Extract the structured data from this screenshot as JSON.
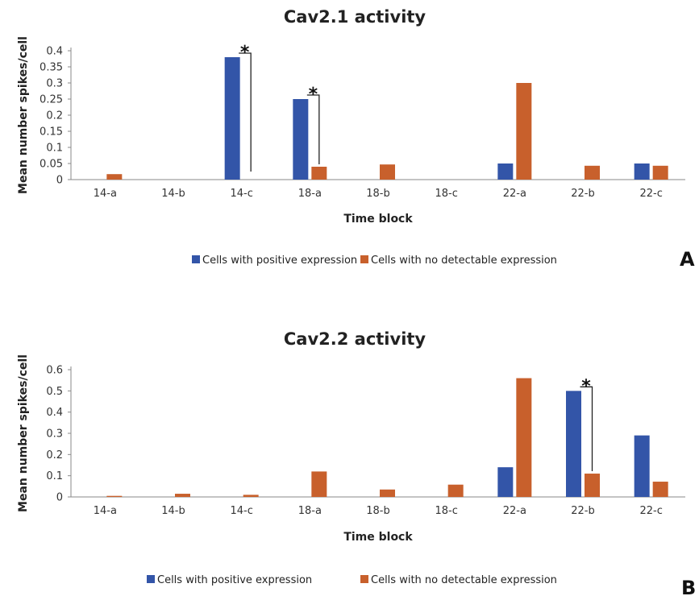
{
  "chart_data": [
    {
      "type": "bar",
      "panel_label": "A",
      "title": "Cav2.1 activity",
      "xlabel": "Time block",
      "ylabel": "Mean number spikes/cell",
      "ylim": [
        0,
        0.4
      ],
      "yticks": [
        "0",
        "0.05",
        "0.1",
        "0.15",
        "0.2",
        "0.25",
        "0.3",
        "0.35",
        "0.4"
      ],
      "categories": [
        "14-a",
        "14-b",
        "14-c",
        "18-a",
        "18-b",
        "18-c",
        "22-a",
        "22-b",
        "22-c"
      ],
      "series": [
        {
          "name": "Cells with positive expression",
          "color": "#3355a8",
          "values": [
            0,
            0,
            0.38,
            0.25,
            0,
            0,
            0.05,
            0,
            0.05
          ]
        },
        {
          "name": "Cells with no detectable expression",
          "color": "#c8602c",
          "values": [
            0.017,
            0,
            0,
            0.04,
            0.047,
            0,
            0.3,
            0.043,
            0.043
          ]
        }
      ],
      "significance": [
        {
          "category": "14-c",
          "label": "*"
        },
        {
          "category": "18-a",
          "label": "*"
        }
      ],
      "legend": "bottom"
    },
    {
      "type": "bar",
      "panel_label": "B",
      "title": "Cav2.2 activity",
      "xlabel": "Time block",
      "ylabel": "Mean number spikes/cell",
      "ylim": [
        0,
        0.6
      ],
      "yticks": [
        "0",
        "0.1",
        "0.2",
        "0.3",
        "0.4",
        "0.5",
        "0.6"
      ],
      "categories": [
        "14-a",
        "14-b",
        "14-c",
        "18-a",
        "18-b",
        "18-c",
        "22-a",
        "22-b",
        "22-c"
      ],
      "series": [
        {
          "name": "Cells with positive expression",
          "color": "#3355a8",
          "values": [
            0,
            0,
            0,
            0,
            0,
            0,
            0.14,
            0.5,
            0.29
          ]
        },
        {
          "name": "Cells with no detectable expression",
          "color": "#c8602c",
          "values": [
            0.005,
            0.015,
            0.01,
            0.12,
            0.035,
            0.058,
            0.56,
            0.11,
            0.072
          ]
        }
      ],
      "significance": [
        {
          "category": "22-b",
          "label": "*"
        }
      ],
      "legend": "bottom"
    }
  ]
}
